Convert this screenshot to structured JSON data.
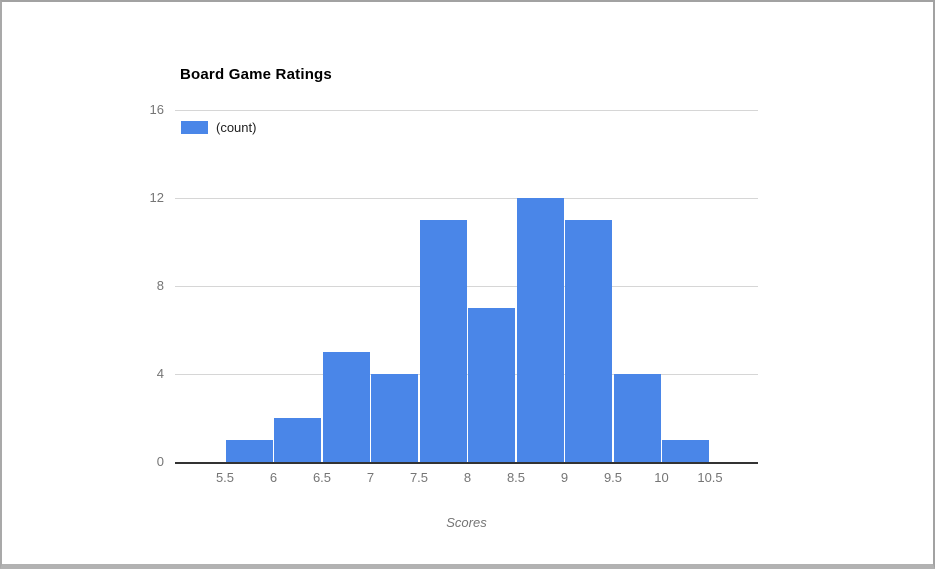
{
  "chart_data": {
    "type": "bar",
    "subtype": "histogram",
    "title": "Board Game Ratings",
    "legend_label": "(count)",
    "xlabel": "Scores",
    "ylabel": "",
    "bin_edge_labels": [
      "5.5",
      "6",
      "6.5",
      "7",
      "7.5",
      "8",
      "8.5",
      "9",
      "9.5",
      "10",
      "10.5"
    ],
    "bins": [
      {
        "range": "5.5-6",
        "count": 1
      },
      {
        "range": "6-6.5",
        "count": 2
      },
      {
        "range": "6.5-7",
        "count": 5
      },
      {
        "range": "7-7.5",
        "count": 4
      },
      {
        "range": "7.5-8",
        "count": 11
      },
      {
        "range": "8-8.5",
        "count": 7
      },
      {
        "range": "8.5-9",
        "count": 12
      },
      {
        "range": "9-9.5",
        "count": 11
      },
      {
        "range": "9.5-10",
        "count": 4
      },
      {
        "range": "10-10.5",
        "count": 1
      }
    ],
    "values": [
      1,
      2,
      5,
      4,
      11,
      7,
      12,
      11,
      4,
      1
    ],
    "y_ticks": [
      0,
      4,
      8,
      12,
      16
    ],
    "ylim": [
      0,
      16
    ],
    "grid": true,
    "legend_position": "top-left"
  },
  "colors": {
    "bar": "#4a86e8",
    "axis_text": "#757575",
    "legend_text": "#222222",
    "title_text": "#000000",
    "gridline": "#d6d6d6",
    "baseline": "#333333",
    "frame": "#a6a6a6",
    "background": "#ffffff"
  }
}
